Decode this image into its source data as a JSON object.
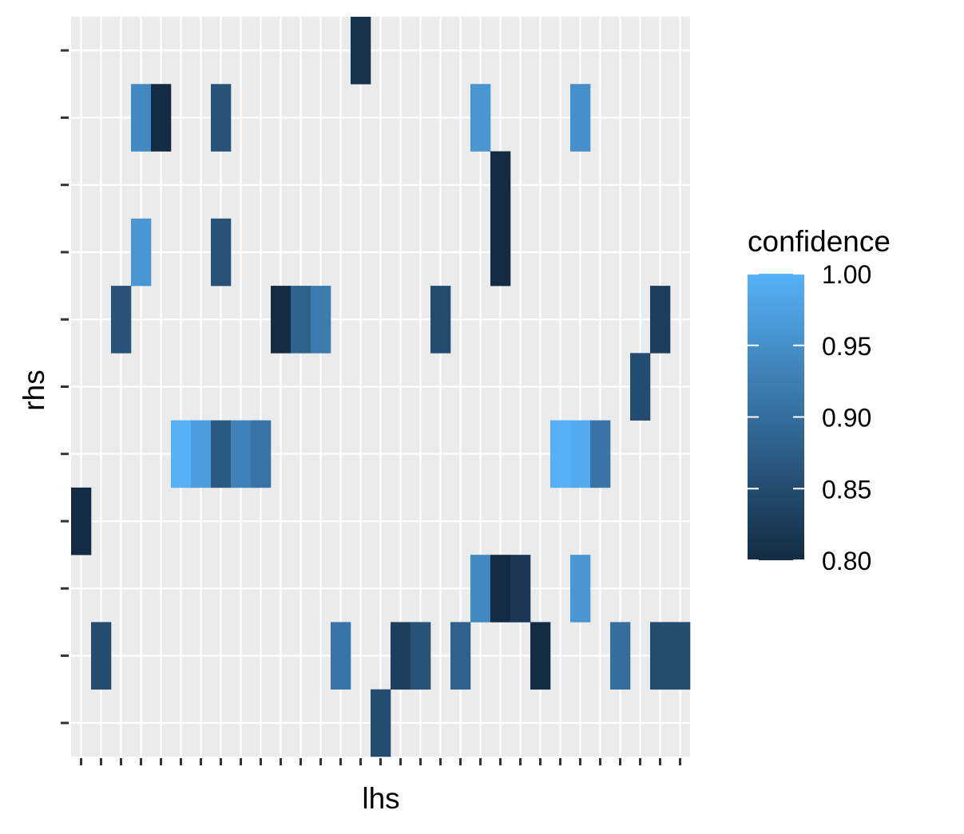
{
  "chart_data": {
    "type": "heatmap",
    "xlabel": "lhs",
    "ylabel": "rhs",
    "x_count": 31,
    "y_count": 11,
    "x_tick_labels": [],
    "y_tick_labels": [],
    "grid": true,
    "legend": {
      "title": "confidence",
      "placement": "right",
      "ticks": [
        "1.00",
        "0.95",
        "0.90",
        "0.85",
        "0.80"
      ],
      "tick_values": [
        1.0,
        0.95,
        0.9,
        0.85,
        0.8
      ],
      "range": [
        0.8,
        1.0
      ],
      "colors": {
        "low": "#132B43",
        "high": "#56B1F7"
      }
    },
    "cells": [
      {
        "x": 15,
        "y": 11,
        "value": 0.81
      },
      {
        "x": 4,
        "y": 10,
        "value": 0.94
      },
      {
        "x": 5,
        "y": 10,
        "value": 0.8
      },
      {
        "x": 8,
        "y": 10,
        "value": 0.86
      },
      {
        "x": 21,
        "y": 10,
        "value": 0.96
      },
      {
        "x": 26,
        "y": 10,
        "value": 0.95
      },
      {
        "x": 22,
        "y": 9,
        "value": 0.8
      },
      {
        "x": 4,
        "y": 8,
        "value": 0.96
      },
      {
        "x": 8,
        "y": 8,
        "value": 0.86
      },
      {
        "x": 22,
        "y": 8,
        "value": 0.8
      },
      {
        "x": 3,
        "y": 7,
        "value": 0.86
      },
      {
        "x": 11,
        "y": 7,
        "value": 0.8
      },
      {
        "x": 12,
        "y": 7,
        "value": 0.88
      },
      {
        "x": 13,
        "y": 7,
        "value": 0.92
      },
      {
        "x": 19,
        "y": 7,
        "value": 0.85
      },
      {
        "x": 30,
        "y": 7,
        "value": 0.83
      },
      {
        "x": 29,
        "y": 6,
        "value": 0.85
      },
      {
        "x": 6,
        "y": 5,
        "value": 1.0
      },
      {
        "x": 7,
        "y": 5,
        "value": 0.97
      },
      {
        "x": 8,
        "y": 5,
        "value": 0.87
      },
      {
        "x": 9,
        "y": 5,
        "value": 0.93
      },
      {
        "x": 10,
        "y": 5,
        "value": 0.91
      },
      {
        "x": 25,
        "y": 5,
        "value": 1.0
      },
      {
        "x": 26,
        "y": 5,
        "value": 0.99
      },
      {
        "x": 27,
        "y": 5,
        "value": 0.91
      },
      {
        "x": 1,
        "y": 4,
        "value": 0.8
      },
      {
        "x": 21,
        "y": 3,
        "value": 0.94
      },
      {
        "x": 22,
        "y": 3,
        "value": 0.8
      },
      {
        "x": 23,
        "y": 3,
        "value": 0.82
      },
      {
        "x": 26,
        "y": 3,
        "value": 0.96
      },
      {
        "x": 2,
        "y": 2,
        "value": 0.85
      },
      {
        "x": 14,
        "y": 2,
        "value": 0.91
      },
      {
        "x": 17,
        "y": 2,
        "value": 0.83
      },
      {
        "x": 18,
        "y": 2,
        "value": 0.86
      },
      {
        "x": 20,
        "y": 2,
        "value": 0.88
      },
      {
        "x": 24,
        "y": 2,
        "value": 0.8
      },
      {
        "x": 28,
        "y": 2,
        "value": 0.9
      },
      {
        "x": 30,
        "y": 2,
        "value": 0.85
      },
      {
        "x": 31,
        "y": 2,
        "value": 0.85
      },
      {
        "x": 16,
        "y": 1,
        "value": 0.85
      }
    ]
  }
}
